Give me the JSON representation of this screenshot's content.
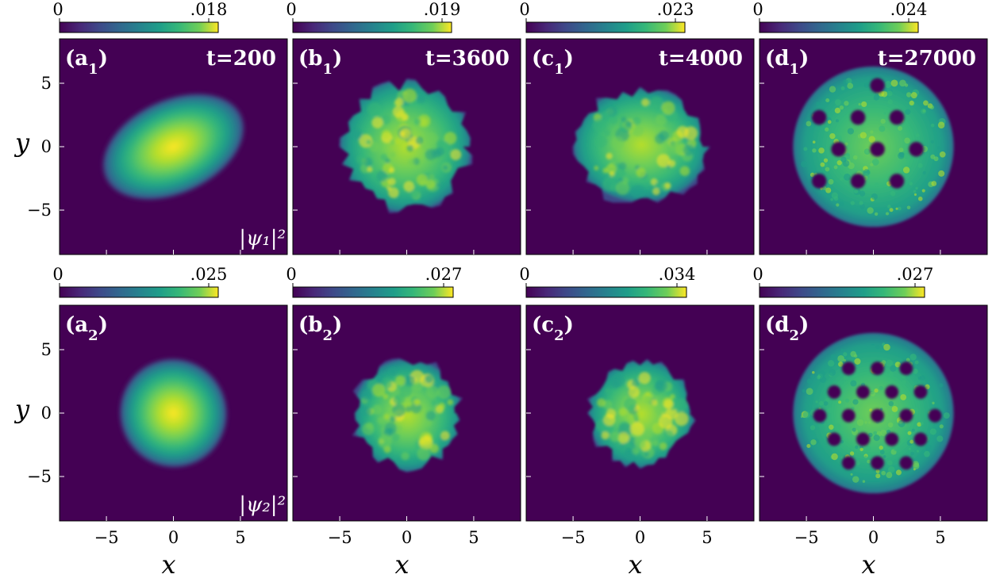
{
  "chart_data": {
    "type": "heatmap",
    "colormap": "viridis",
    "xlabel": "x",
    "ylabel": "y",
    "xlim": [
      -8.5,
      8.5
    ],
    "ylim": [
      -8.5,
      8.5
    ],
    "xticks": [
      -5,
      0,
      5
    ],
    "yticks": [
      -5,
      0,
      5
    ],
    "xtick_labels": [
      "−5",
      "0",
      "5"
    ],
    "ytick_labels": [
      "5",
      "0",
      "−5"
    ],
    "panels": [
      {
        "id": "a1",
        "row": 0,
        "col": 0,
        "letter": "a",
        "sub": "1",
        "time": "t=200",
        "cbar_min": "0",
        "cbar_max": ".018",
        "quantity": "|ψ₁|²",
        "pattern": "ellipse",
        "rx": 5.6,
        "ry": 3.7,
        "angle": -25
      },
      {
        "id": "b1",
        "row": 0,
        "col": 1,
        "letter": "b",
        "sub": "1",
        "time": "t=3600",
        "cbar_min": "0",
        "cbar_max": ".019",
        "pattern": "turbulent",
        "rx": 4.6,
        "ry": 4.9
      },
      {
        "id": "c1",
        "row": 0,
        "col": 2,
        "letter": "c",
        "sub": "1",
        "time": "t=4000",
        "cbar_min": "0",
        "cbar_max": ".023",
        "pattern": "turbulent",
        "rx": 4.9,
        "ry": 4.4
      },
      {
        "id": "d1",
        "row": 0,
        "col": 3,
        "letter": "d",
        "sub": "1",
        "time": "t=27000",
        "cbar_min": "0",
        "cbar_max": ".024",
        "pattern": "lattice",
        "rx": 6.0,
        "ry": 6.0
      },
      {
        "id": "a2",
        "row": 1,
        "col": 0,
        "letter": "a",
        "sub": "2",
        "cbar_min": "0",
        "cbar_max": ".025",
        "quantity": "|ψ₂|²",
        "pattern": "ellipse",
        "rx": 4.0,
        "ry": 4.3,
        "angle": -20
      },
      {
        "id": "b2",
        "row": 1,
        "col": 1,
        "letter": "b",
        "sub": "2",
        "cbar_min": "0",
        "cbar_max": ".027",
        "pattern": "turbulent",
        "rx": 4.0,
        "ry": 4.2
      },
      {
        "id": "c2",
        "row": 1,
        "col": 2,
        "letter": "c",
        "sub": "2",
        "cbar_min": "0",
        "cbar_max": ".034",
        "pattern": "turbulent",
        "rx": 3.8,
        "ry": 4.0
      },
      {
        "id": "d2",
        "row": 1,
        "col": 3,
        "letter": "d",
        "sub": "2",
        "cbar_min": "0",
        "cbar_max": ".027",
        "pattern": "lattice",
        "rx": 6.0,
        "ry": 6.0
      }
    ]
  }
}
